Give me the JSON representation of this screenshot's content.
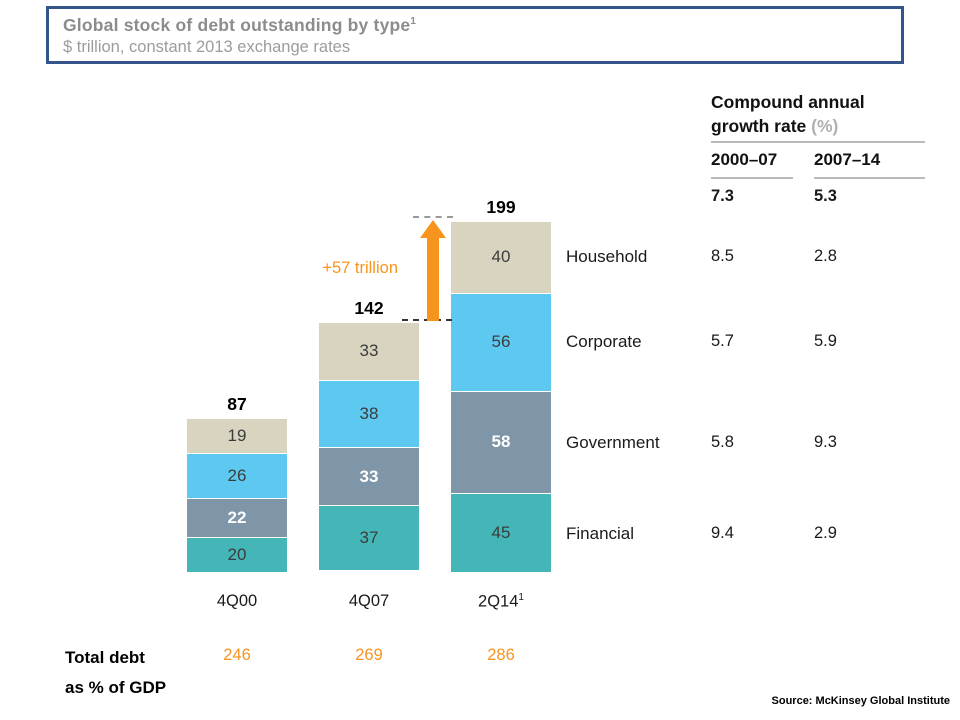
{
  "title_box": {
    "title": "Global stock of debt outstanding by type",
    "title_superscript": "1",
    "subtitle": "$ trillion, constant 2013 exchange rates"
  },
  "growth_table": {
    "header_line1": "Compound annual",
    "header_line2": "growth rate",
    "header_unit": "(%)",
    "col_headers": [
      "2000–07",
      "2007–14"
    ],
    "overall": [
      "7.3",
      "5.3"
    ]
  },
  "chart_data": {
    "type": "bar",
    "stacked": true,
    "unit": "$ trillion, constant 2013 exchange rates",
    "categories": [
      "4Q00",
      "4Q07",
      "2Q14¹"
    ],
    "totals": [
      87,
      142,
      199
    ],
    "series": [
      {
        "name": "Household",
        "values": [
          19,
          33,
          40
        ],
        "color": "#d8d4c0",
        "cagr_2000_07": "8.5",
        "cagr_2007_14": "2.8"
      },
      {
        "name": "Corporate",
        "values": [
          26,
          38,
          56
        ],
        "color": "#5ec9f0",
        "cagr_2000_07": "5.7",
        "cagr_2007_14": "5.9"
      },
      {
        "name": "Government",
        "values": [
          22,
          33,
          58
        ],
        "color": "#7e96a8",
        "cagr_2000_07": "5.8",
        "cagr_2007_14": "9.3",
        "label_color": "#ffffff"
      },
      {
        "name": "Financial",
        "values": [
          20,
          37,
          45
        ],
        "color": "#45b6b8",
        "cagr_2000_07": "9.4",
        "cagr_2007_14": "2.9"
      }
    ],
    "annotation": {
      "text": "+57 trillion",
      "color": "#f7941e"
    },
    "gdp_row": {
      "label_line1": "Total debt",
      "label_line2": "as % of GDP",
      "values": [
        "246",
        "269",
        "286"
      ],
      "color": "#f7941e"
    },
    "legend_position": "right-row-labels",
    "grid": false
  },
  "colors": {
    "accent_orange": "#f7941e",
    "title_border_blue": "#35558a",
    "household_beige": "#d8d4c0",
    "corporate_blue": "#5ec9f0",
    "government_slate": "#7e96a8",
    "financial_teal": "#45b6b8"
  },
  "source": "Source: McKinsey Global Institute"
}
